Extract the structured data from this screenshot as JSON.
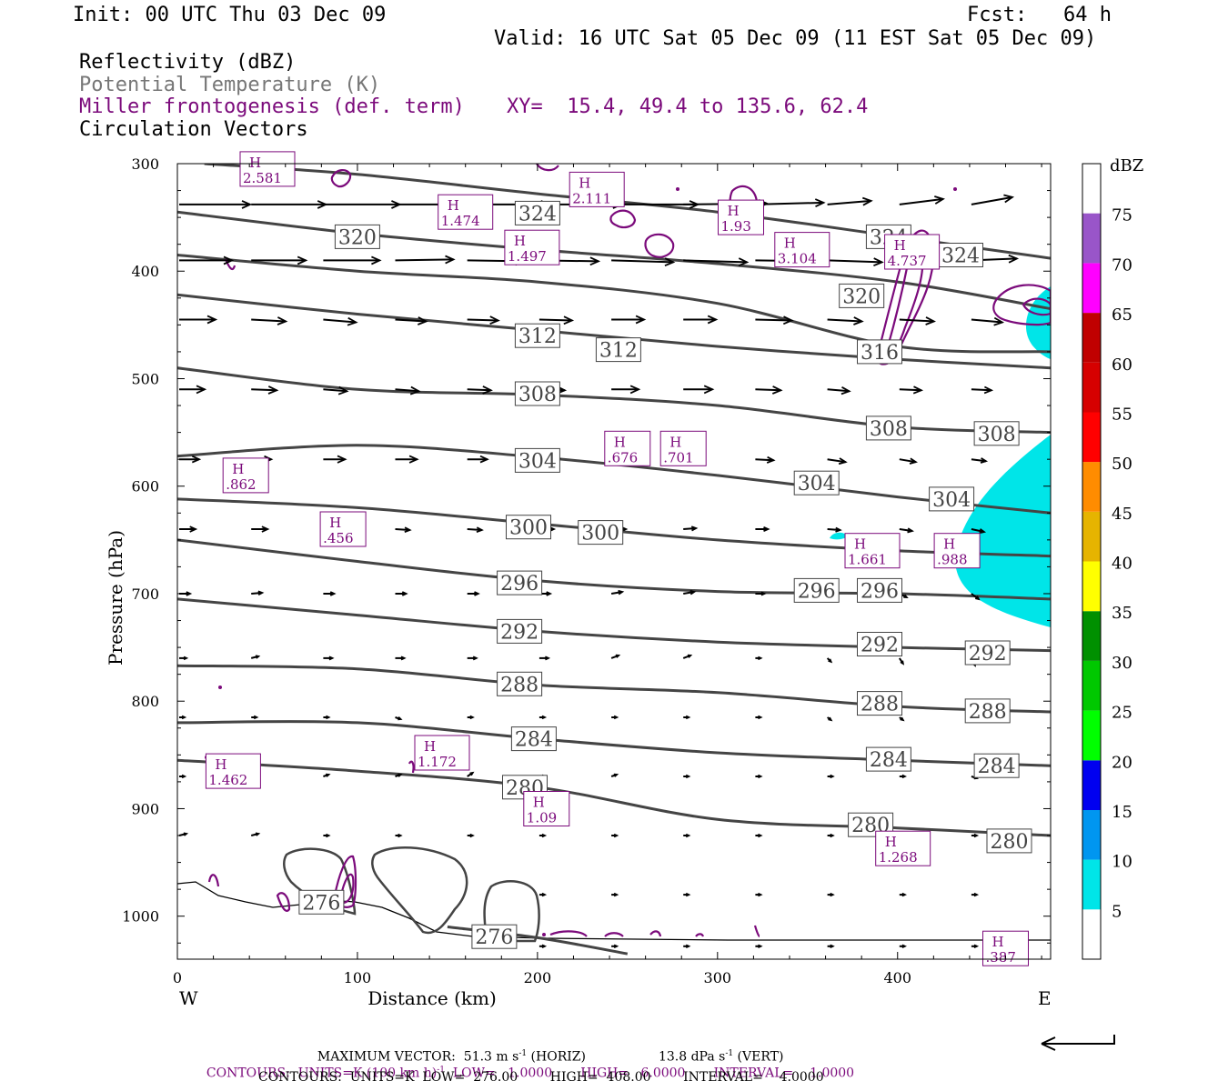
{
  "header": {
    "init": "Init: 00 UTC Thu 03 Dec 09",
    "fcst": "Fcst:   64 h",
    "valid": "Valid: 16 UTC Sat 05 Dec 09 (11 EST Sat 05 Dec 09)"
  },
  "legend": {
    "reflectivity": "Reflectivity (dBZ)",
    "potential_temp": "Potential Temperature (K)",
    "miller": "Miller frontogenesis (def. term)",
    "xy": "XY=  15.4, 49.4 to 135.6, 62.4",
    "vectors": "Circulation Vectors"
  },
  "colors": {
    "theta": "#444444",
    "miller": "#7b0a7b",
    "reflect_fill": "#00e5e8",
    "text": "#000000"
  },
  "footer": {
    "max_vector_a": "MAXIMUM VECTOR:  51.3 m s",
    "max_vector_sup1": "-1",
    "max_vector_b": " (HORIZ)",
    "max_vector_c": "13.8 dPa s",
    "max_vector_sup2": "-1",
    "max_vector_d": " (VERT)",
    "contours1_a": "CONTOURS:  UNITS=K (100 km h)",
    "contours1_sup": "-1",
    "contours1_b": "  LOW=   1.0000       HIGH=   6.0000       INTERVAL=    1.0000",
    "contours2": "CONTOURS:  UNITS=K  LOW=  276.00        HIGH=  408.00        INTERVAL=    4.0000"
  },
  "chart_data": {
    "type": "cross-section",
    "xlabel": "Distance (km)",
    "ylabel": "Pressure (hPa)",
    "xlim": [
      0,
      485
    ],
    "ylim": [
      1040,
      300
    ],
    "x_ticks": [
      "0",
      "100",
      "200",
      "300",
      "400"
    ],
    "y_ticks": [
      "300",
      "400",
      "500",
      "600",
      "700",
      "800",
      "900",
      "1000"
    ],
    "x_end_labels": {
      "left": "W",
      "right": "E"
    },
    "grid": false,
    "colorbar": {
      "title": "dBZ",
      "levels": [
        "5",
        "10",
        "15",
        "20",
        "25",
        "30",
        "35",
        "40",
        "45",
        "50",
        "55",
        "60",
        "65",
        "70",
        "75"
      ],
      "colors": [
        "#ffffff",
        "#00e5e8",
        "#0096f0",
        "#0000f0",
        "#00ff00",
        "#00c800",
        "#009000",
        "#ffff00",
        "#e6b400",
        "#ff8c00",
        "#ff0000",
        "#d60000",
        "#c00000",
        "#ff00ff",
        "#9955c9"
      ]
    },
    "theta_contours": [
      {
        "label": "324",
        "points": [
          [
            15,
            300
          ],
          [
            100,
            310
          ],
          [
            200,
            328
          ],
          [
            300,
            345
          ],
          [
            400,
            368
          ],
          [
            485,
            388
          ]
        ],
        "label_at": [
          [
            200,
            346
          ],
          [
            395,
            368
          ],
          [
            435,
            385
          ]
        ]
      },
      {
        "label": "320",
        "points": [
          [
            0,
            345
          ],
          [
            100,
            365
          ],
          [
            200,
            380
          ],
          [
            300,
            393
          ],
          [
            400,
            410
          ],
          [
            485,
            435
          ]
        ],
        "label_at": [
          [
            100,
            368
          ],
          [
            380,
            423
          ]
        ]
      },
      {
        "label": "316",
        "points": [
          [
            0,
            385
          ],
          [
            100,
            400
          ],
          [
            200,
            410
          ],
          [
            300,
            430
          ],
          [
            400,
            470
          ],
          [
            485,
            475
          ]
        ],
        "label_at": [
          [
            390,
            475
          ]
        ]
      },
      {
        "label": "312",
        "points": [
          [
            0,
            422
          ],
          [
            100,
            440
          ],
          [
            200,
            455
          ],
          [
            300,
            470
          ],
          [
            400,
            482
          ],
          [
            485,
            490
          ]
        ],
        "label_at": [
          [
            200,
            460
          ],
          [
            245,
            473
          ]
        ]
      },
      {
        "label": "308",
        "points": [
          [
            0,
            490
          ],
          [
            100,
            510
          ],
          [
            200,
            515
          ],
          [
            300,
            525
          ],
          [
            400,
            545
          ],
          [
            485,
            550
          ]
        ],
        "label_at": [
          [
            200,
            514
          ],
          [
            395,
            546
          ],
          [
            455,
            551
          ]
        ]
      },
      {
        "label": "304",
        "points": [
          [
            0,
            572
          ],
          [
            100,
            562
          ],
          [
            200,
            573
          ],
          [
            300,
            590
          ],
          [
            400,
            610
          ],
          [
            485,
            625
          ]
        ],
        "label_at": [
          [
            200,
            576
          ],
          [
            355,
            597
          ],
          [
            430,
            612
          ]
        ]
      },
      {
        "label": "300",
        "points": [
          [
            0,
            612
          ],
          [
            100,
            620
          ],
          [
            200,
            635
          ],
          [
            300,
            650
          ],
          [
            400,
            660
          ],
          [
            485,
            665
          ]
        ],
        "label_at": [
          [
            195,
            638
          ],
          [
            235,
            643
          ]
        ]
      },
      {
        "label": "296",
        "points": [
          [
            0,
            650
          ],
          [
            100,
            670
          ],
          [
            200,
            688
          ],
          [
            300,
            698
          ],
          [
            400,
            700
          ],
          [
            485,
            705
          ]
        ],
        "label_at": [
          [
            190,
            690
          ],
          [
            355,
            697
          ],
          [
            390,
            697
          ]
        ]
      },
      {
        "label": "292",
        "points": [
          [
            0,
            705
          ],
          [
            100,
            720
          ],
          [
            200,
            735
          ],
          [
            300,
            745
          ],
          [
            400,
            750
          ],
          [
            485,
            753
          ]
        ],
        "label_at": [
          [
            190,
            735
          ],
          [
            390,
            747
          ],
          [
            450,
            755
          ]
        ]
      },
      {
        "label": "288",
        "points": [
          [
            0,
            767
          ],
          [
            100,
            770
          ],
          [
            200,
            785
          ],
          [
            300,
            792
          ],
          [
            400,
            805
          ],
          [
            485,
            810
          ]
        ],
        "label_at": [
          [
            190,
            784
          ],
          [
            390,
            802
          ],
          [
            450,
            809
          ]
        ]
      },
      {
        "label": "284",
        "points": [
          [
            0,
            820
          ],
          [
            100,
            820
          ],
          [
            200,
            835
          ],
          [
            300,
            848
          ],
          [
            400,
            855
          ],
          [
            485,
            860
          ]
        ],
        "label_at": [
          [
            198,
            835
          ],
          [
            395,
            854
          ],
          [
            455,
            860
          ]
        ]
      },
      {
        "label": "280",
        "points": [
          [
            0,
            855
          ],
          [
            100,
            865
          ],
          [
            200,
            880
          ],
          [
            300,
            910
          ],
          [
            400,
            918
          ],
          [
            485,
            925
          ]
        ],
        "label_at": [
          [
            193,
            880
          ],
          [
            385,
            915
          ],
          [
            462,
            930
          ]
        ]
      },
      {
        "label": "276",
        "points": [
          [
            150,
            1010
          ],
          [
            200,
            1020
          ],
          [
            250,
            1035
          ]
        ],
        "label_at": [
          [
            176,
            1019
          ],
          [
            80,
            987
          ]
        ]
      }
    ],
    "frontogenesis_maxima": [
      {
        "label": "H",
        "value": "2.581",
        "x": 50,
        "p": 305
      },
      {
        "label": "H",
        "value": "2.111",
        "x": 233,
        "p": 324
      },
      {
        "label": "H",
        "value": "1.474",
        "x": 160,
        "p": 345
      },
      {
        "label": "H",
        "value": "1.497",
        "x": 197,
        "p": 378
      },
      {
        "label": "H",
        "value": "1.93",
        "x": 313,
        "p": 350
      },
      {
        "label": "H",
        "value": "3.104",
        "x": 347,
        "p": 380
      },
      {
        "label": "H",
        "value": "4.737",
        "x": 408,
        "p": 382
      },
      {
        "label": "H",
        "value": ".676",
        "x": 250,
        "p": 565
      },
      {
        "label": "H",
        "value": ".701",
        "x": 281,
        "p": 565
      },
      {
        "label": "H",
        "value": ".862",
        "x": 38,
        "p": 590
      },
      {
        "label": "H",
        "value": ".456",
        "x": 92,
        "p": 640
      },
      {
        "label": "H",
        "value": "1.661",
        "x": 386,
        "p": 660
      },
      {
        "label": "H",
        "value": ".988",
        "x": 433,
        "p": 660
      },
      {
        "label": "H",
        "value": "1.172",
        "x": 147,
        "p": 848
      },
      {
        "label": "H",
        "value": "1.462",
        "x": 31,
        "p": 865
      },
      {
        "label": "H",
        "value": "1.09",
        "x": 205,
        "p": 900
      },
      {
        "label": "H",
        "value": "1.268",
        "x": 403,
        "p": 937
      },
      {
        "label": "H",
        "value": ".387",
        "x": 460,
        "p": 1030
      }
    ]
  }
}
